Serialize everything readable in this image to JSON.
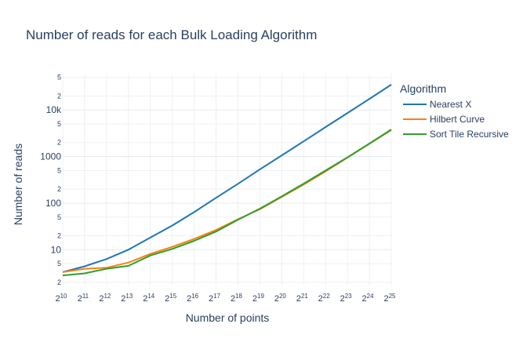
{
  "chart_data": {
    "type": "line",
    "title": "Number of reads for each Bulk Loading Algorithm",
    "xlabel": "Number of points",
    "ylabel": "Number of reads",
    "x_scale": "log2",
    "y_scale": "log10",
    "x_ticks": [
      {
        "base": "2",
        "exp": "10"
      },
      {
        "base": "2",
        "exp": "11"
      },
      {
        "base": "2",
        "exp": "12"
      },
      {
        "base": "2",
        "exp": "13"
      },
      {
        "base": "2",
        "exp": "14"
      },
      {
        "base": "2",
        "exp": "15"
      },
      {
        "base": "2",
        "exp": "16"
      },
      {
        "base": "2",
        "exp": "17"
      },
      {
        "base": "2",
        "exp": "18"
      },
      {
        "base": "2",
        "exp": "19"
      },
      {
        "base": "2",
        "exp": "20"
      },
      {
        "base": "2",
        "exp": "21"
      },
      {
        "base": "2",
        "exp": "22"
      },
      {
        "base": "2",
        "exp": "23"
      },
      {
        "base": "2",
        "exp": "24"
      },
      {
        "base": "2",
        "exp": "25"
      }
    ],
    "y_major_ticks": [
      {
        "value": 10,
        "label": "10"
      },
      {
        "value": 100,
        "label": "100"
      },
      {
        "value": 1000,
        "label": "1000"
      },
      {
        "value": 10000,
        "label": "10k"
      }
    ],
    "y_minor_ticks": [
      {
        "value": 2,
        "label": "2"
      },
      {
        "value": 5,
        "label": "5"
      },
      {
        "value": 20,
        "label": "2"
      },
      {
        "value": 50,
        "label": "5"
      },
      {
        "value": 200,
        "label": "2"
      },
      {
        "value": 500,
        "label": "5"
      },
      {
        "value": 2000,
        "label": "2"
      },
      {
        "value": 5000,
        "label": "5"
      },
      {
        "value": 20000,
        "label": "2"
      },
      {
        "value": 50000,
        "label": "5"
      }
    ],
    "x": [
      1024,
      2048,
      4096,
      8192,
      16384,
      32768,
      65536,
      131072,
      262144,
      524288,
      1048576,
      2097152,
      4194304,
      8388608,
      16777216,
      33554432
    ],
    "xlim": [
      1024,
      33554432
    ],
    "ylim": [
      1.7,
      60000
    ],
    "legend": {
      "title": "Algorithm",
      "position": "right"
    },
    "series": [
      {
        "name": "Nearest X",
        "color": "#1f77b4",
        "values": [
          3.3,
          4.4,
          6.3,
          10,
          18.2,
          33,
          64,
          130,
          260,
          530,
          1060,
          2120,
          4300,
          8600,
          17300,
          35000
        ]
      },
      {
        "name": "Hilbert Curve",
        "color": "#ff7f0e",
        "values": [
          3.3,
          3.9,
          4.1,
          5.3,
          8.1,
          11.5,
          17,
          26.5,
          45,
          74,
          136,
          250,
          480,
          950,
          1880,
          3700
        ]
      },
      {
        "name": "Sort Tile Recursive",
        "color": "#2ca02c",
        "values": [
          2.8,
          3.1,
          3.9,
          4.5,
          7.5,
          10.4,
          15.5,
          24.5,
          44,
          76,
          139,
          262,
          500,
          960,
          1900,
          3800
        ]
      }
    ]
  }
}
